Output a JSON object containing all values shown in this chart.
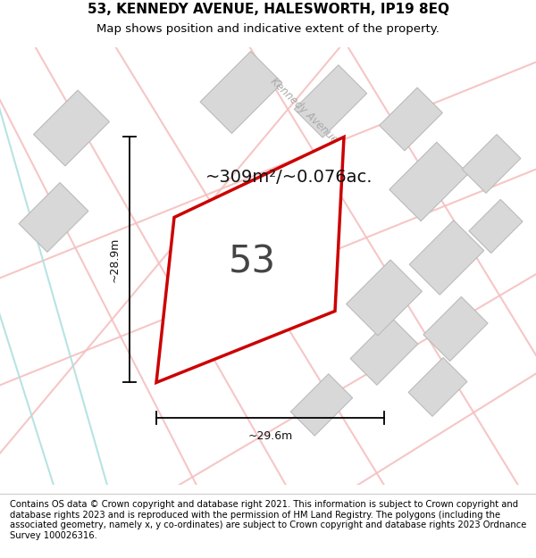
{
  "title_line1": "53, KENNEDY AVENUE, HALESWORTH, IP19 8EQ",
  "title_line2": "Map shows position and indicative extent of the property.",
  "footer_text": "Contains OS data © Crown copyright and database right 2021. This information is subject to Crown copyright and database rights 2023 and is reproduced with the permission of HM Land Registry. The polygons (including the associated geometry, namely x, y co-ordinates) are subject to Crown copyright and database rights 2023 Ordnance Survey 100026316.",
  "area_text": "~309m²/~0.076ac.",
  "house_number": "53",
  "dim_width": "~29.6m",
  "dim_height": "~28.9m",
  "bg_color": "#ffffff",
  "map_bg": "#ffffff",
  "road_color_red": "#f5c0c0",
  "road_color_cyan": "#b0e0e0",
  "building_fill": "#d8d8d8",
  "building_edge": "#bbbbbb",
  "subject_edge": "#cc0000",
  "subject_linewidth": 2.5,
  "kennedy_ave_color": "#aaaaaa",
  "kennedy_ave_label": "Kennedy Avenue",
  "title_fontsize": 11,
  "subtitle_fontsize": 9.5,
  "footer_fontsize": 7.2,
  "area_fontsize": 14,
  "house_fontsize": 30,
  "dim_fontsize": 9
}
